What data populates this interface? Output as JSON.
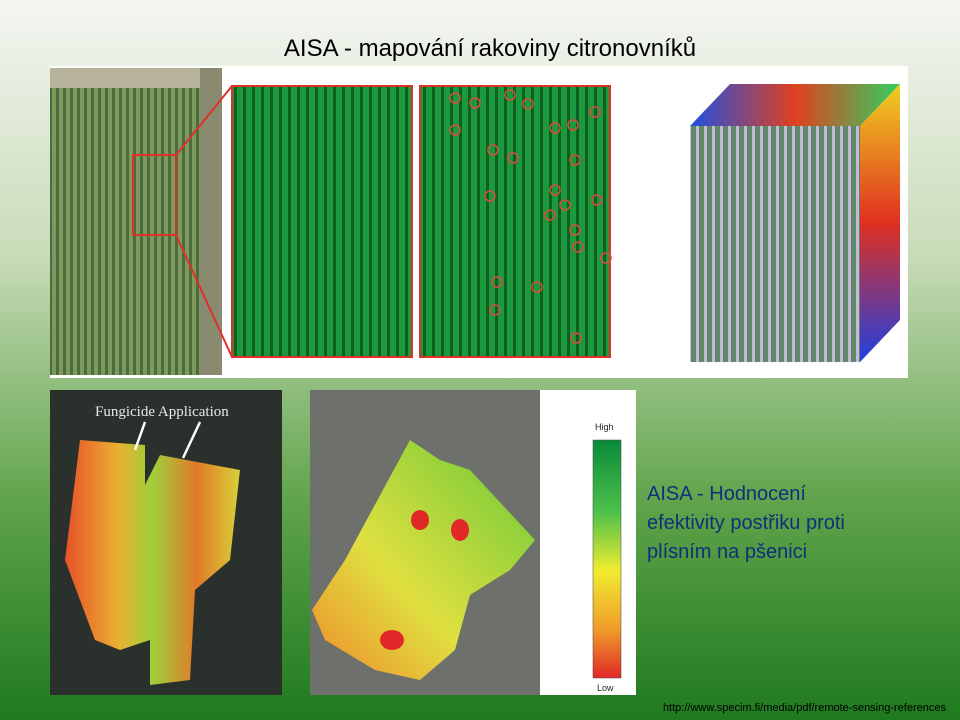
{
  "title": "AISA - mapování rakoviny citronovníků",
  "top_figure": {},
  "bottom_figure": {
    "annotation": "Fungicide Application",
    "legend": {
      "high": "High",
      "low": "Low"
    }
  },
  "description": [
    "AISA - Hodnocení",
    "efektivity postřiku proti",
    "plísním na pšenici"
  ],
  "source": "http://www.specim.fi/media/pdf/remote-sensing-references"
}
